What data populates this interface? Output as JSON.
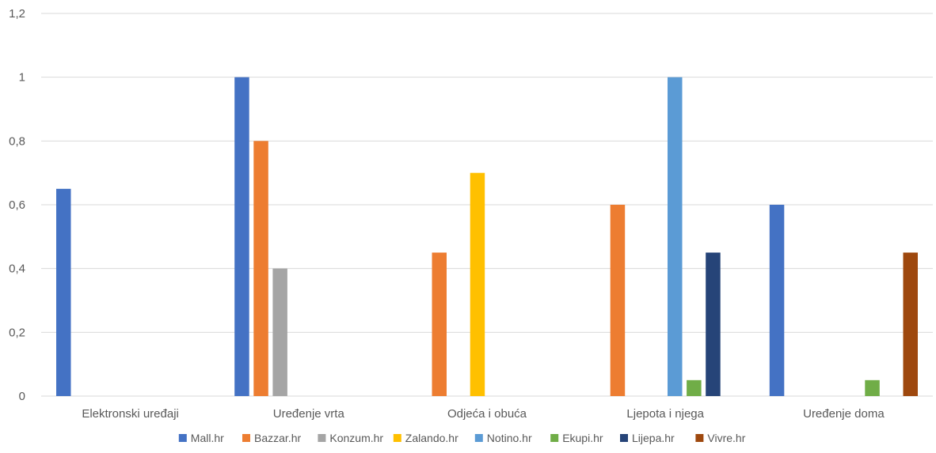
{
  "chart_data": {
    "type": "bar",
    "categories": [
      "Elektronski uređaji",
      "Uređenje vrta",
      "Odjeća i obuća",
      "Ljepota i njega",
      "Uređenje doma"
    ],
    "series": [
      {
        "name": "Mall.hr",
        "color": "#4472C4",
        "values": [
          0.65,
          1.0,
          null,
          null,
          0.6
        ]
      },
      {
        "name": "Bazzar.hr",
        "color": "#ED7D31",
        "values": [
          null,
          0.8,
          0.45,
          0.6,
          null
        ]
      },
      {
        "name": "Konzum.hr",
        "color": "#A5A5A5",
        "values": [
          null,
          0.4,
          null,
          null,
          null
        ]
      },
      {
        "name": "Zalando.hr",
        "color": "#FFC000",
        "values": [
          null,
          null,
          0.7,
          null,
          null
        ]
      },
      {
        "name": "Notino.hr",
        "color": "#5B9BD5",
        "values": [
          null,
          null,
          null,
          1.0,
          null
        ]
      },
      {
        "name": "Ekupi.hr",
        "color": "#70AD47",
        "values": [
          null,
          null,
          null,
          0.05,
          0.05
        ]
      },
      {
        "name": "Lijepa.hr",
        "color": "#264478",
        "values": [
          null,
          null,
          null,
          0.45,
          null
        ]
      },
      {
        "name": "Vivre.hr",
        "color": "#9E480E",
        "values": [
          null,
          null,
          null,
          null,
          0.45
        ]
      }
    ],
    "yticks": [
      "0",
      "0,2",
      "0,4",
      "0,6",
      "0,8",
      "1",
      "1,2"
    ],
    "ylim": [
      0,
      1.2
    ],
    "grid": true,
    "legend_position": "bottom"
  }
}
